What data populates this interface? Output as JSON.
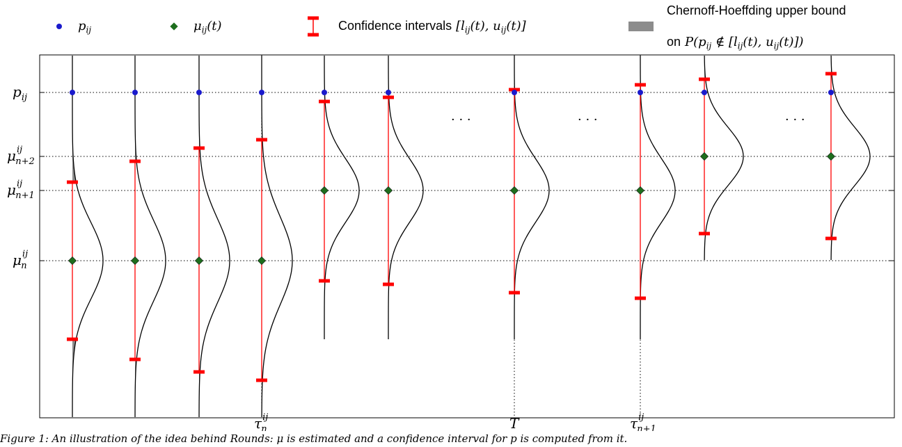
{
  "legend": {
    "p_ij": "p",
    "p_ij_sub": "ij",
    "mu_ij_t": "μ",
    "mu_ij_t_sub": "ij",
    "mu_ij_t_tail": "(t)",
    "ci_label": "Confidence intervals",
    "ci_math": "[l",
    "ci_math_2": "ij",
    "ci_math_3": "(t), u",
    "ci_math_4": "ij",
    "ci_math_5": "(t)]",
    "ch_line1": "Chernoff-Hoeffding upper bound",
    "ch_on": "on",
    "ch_math": "P(p",
    "ch_math_sub": "ij",
    "ch_math_2": " ∉ [l",
    "ch_math_3": "ij",
    "ch_math_4": "(t), u",
    "ch_math_5": "ij",
    "ch_math_6": "(t)])"
  },
  "y_labels": {
    "p_ij": "p",
    "p_ij_sub": "ij",
    "mu_n2": "μ",
    "mu_n2_sup": "ij",
    "mu_n2_sub": "n+2",
    "mu_n1": "μ",
    "mu_n1_sup": "ij",
    "mu_n1_sub": "n+1",
    "mu_n": "μ",
    "mu_n_sup": "ij",
    "mu_n_sub": "n"
  },
  "x_labels": {
    "tau_n": "τ",
    "tau_n_sup": "ij",
    "tau_n_sub": "n",
    "T": "T",
    "tau_n1": "τ",
    "tau_n1_sup": "ij",
    "tau_n1_sub": "n+1"
  },
  "ellipses": [
    "· · ·",
    "· · ·",
    "· · ·"
  ],
  "caption": "Figure 1: An illustration of the idea behind Rounds: μ is estimated and a confidence interval for p is computed from it.",
  "colors": {
    "p_marker": "#1a1acc",
    "mu_marker": "#1e6e1e",
    "interval": "#ff0000",
    "shade": "#8c8c8c",
    "curve": "#000000"
  }
}
